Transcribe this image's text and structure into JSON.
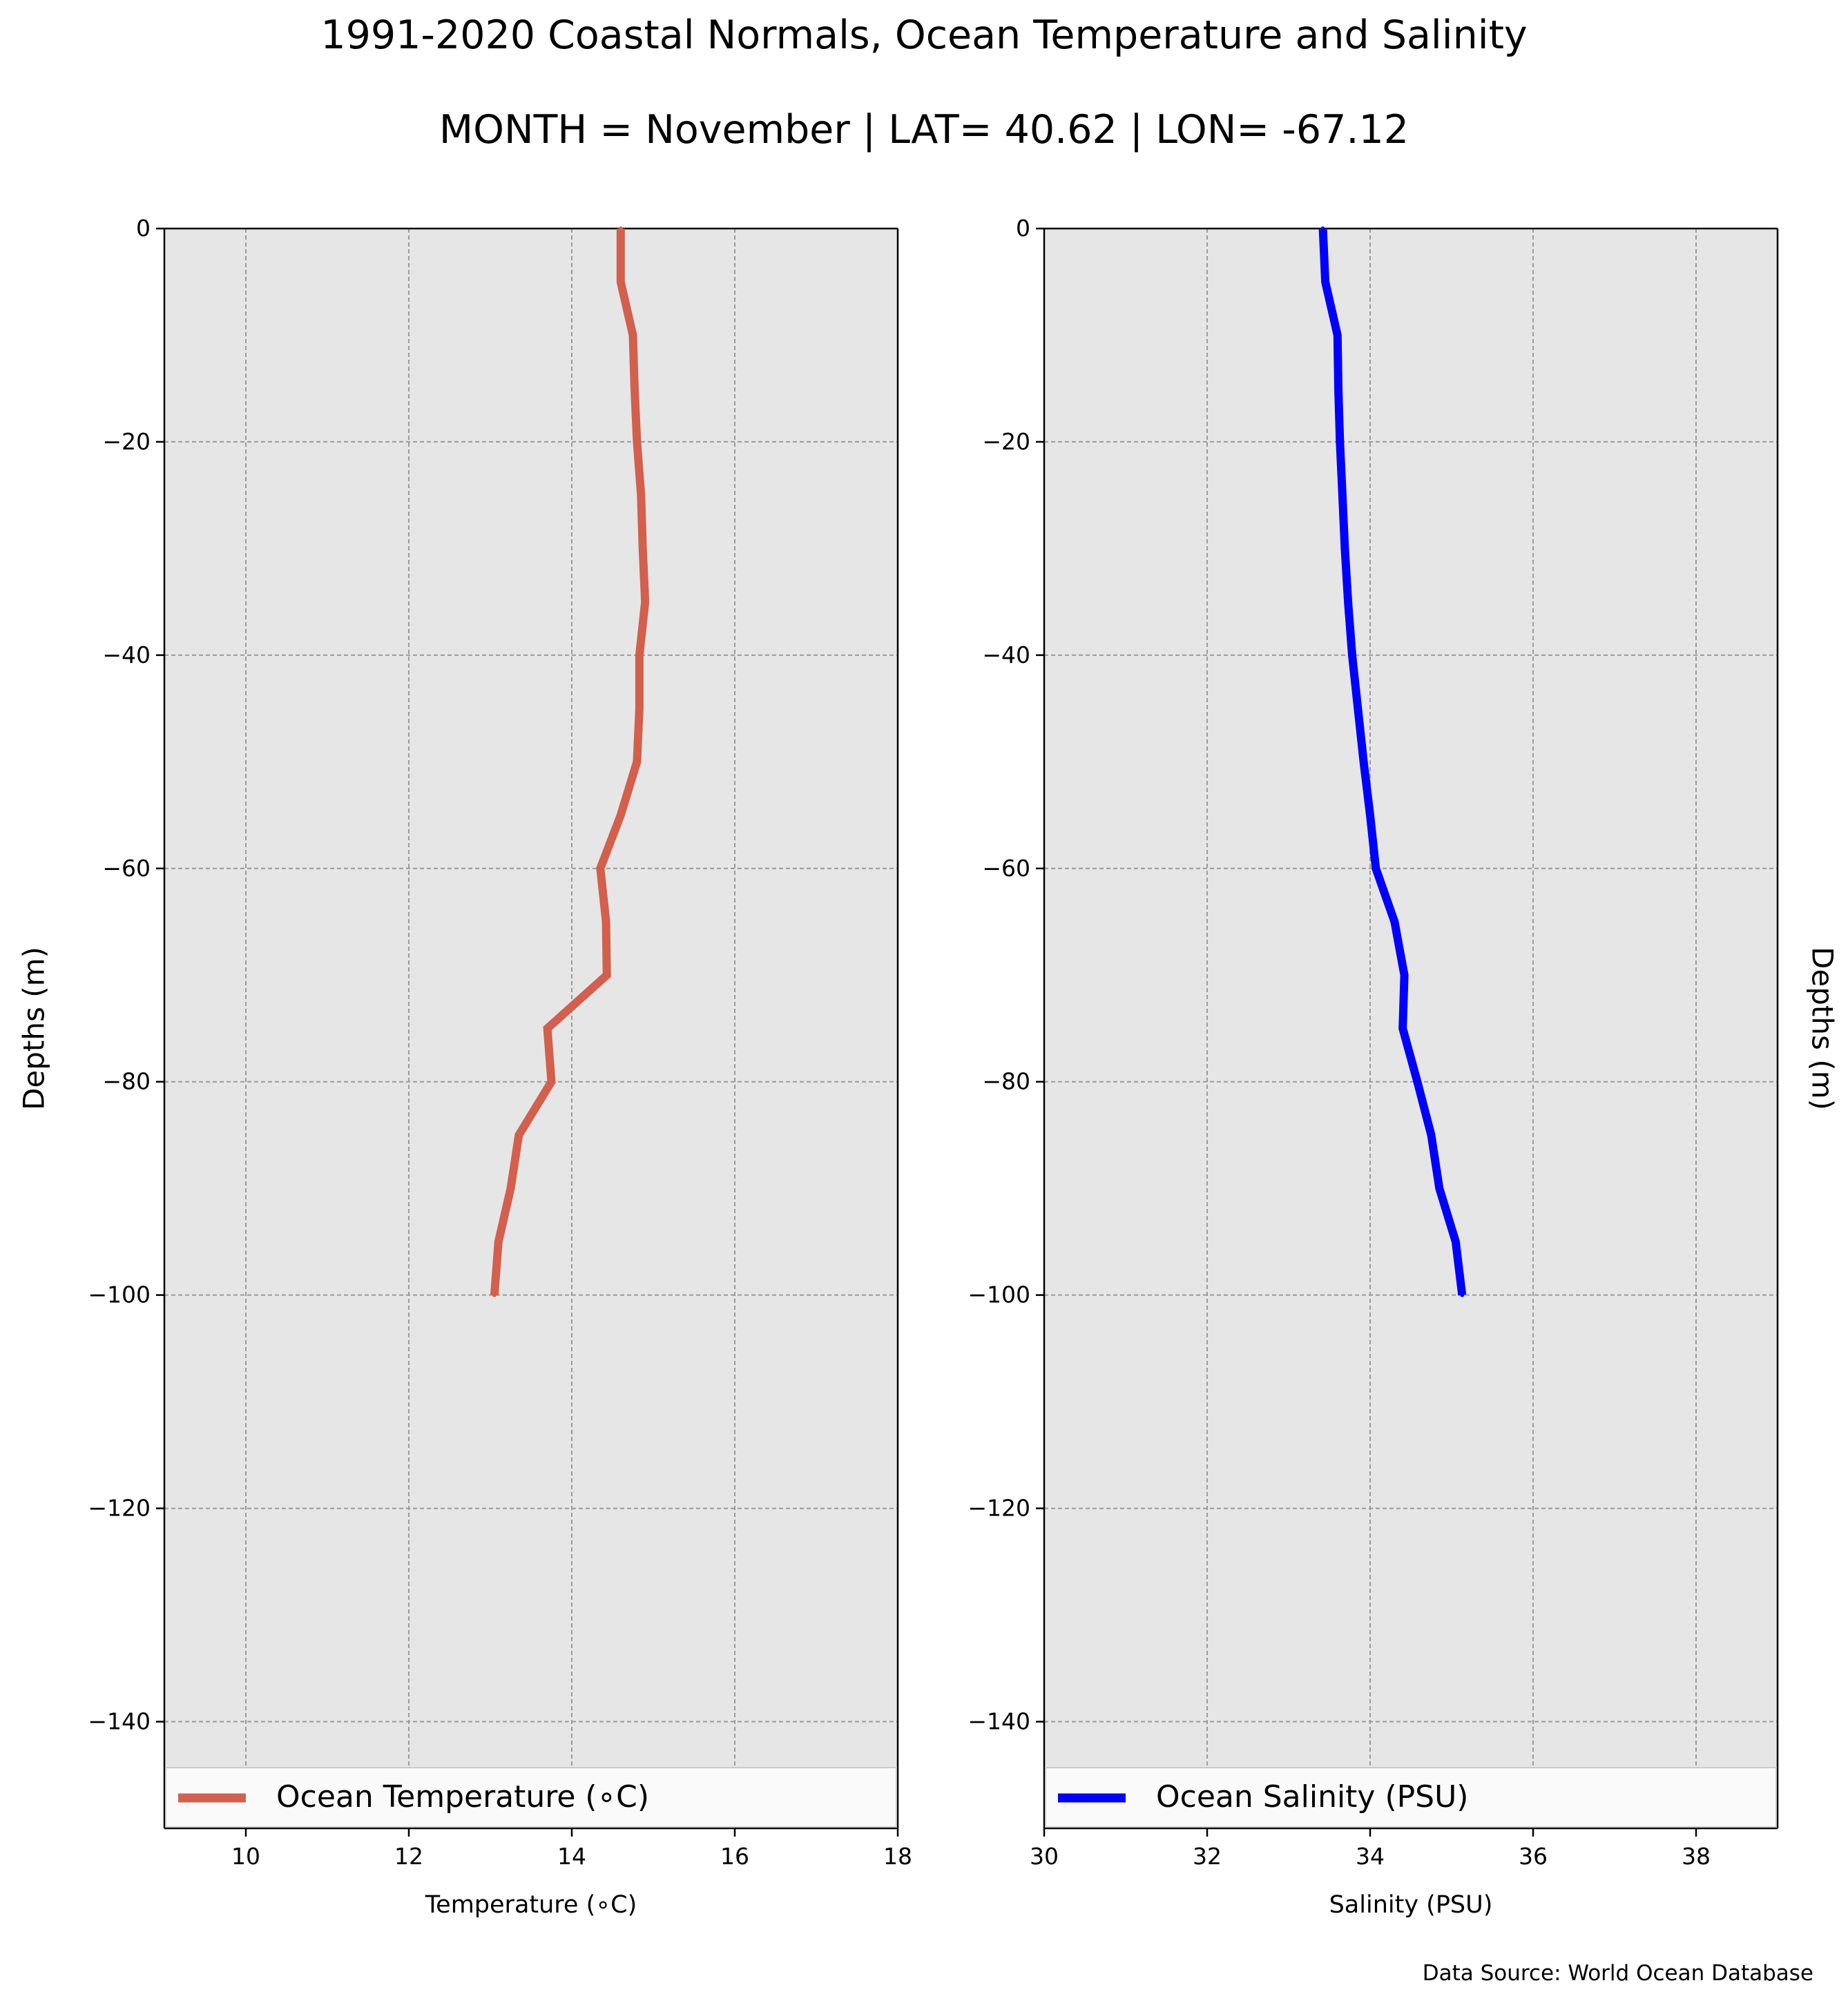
{
  "title": "1991-2020 Coastal Normals, Ocean Temperature and Salinity",
  "subtitle": "MONTH = November | LAT= 40.62 | LON= -67.12",
  "source": "Data Source: World Ocean Database",
  "chart_data": [
    {
      "type": "line",
      "xlabel": "Temperature (∘C)",
      "ylabel": "Depths (m)",
      "xlim": [
        9,
        18
      ],
      "ylim": [
        -150,
        0
      ],
      "xticks": [
        10,
        12,
        14,
        16,
        18
      ],
      "xtick_labels": [
        "10",
        "12",
        "14",
        "16",
        "18"
      ],
      "yticks": [
        0,
        -20,
        -40,
        -60,
        -80,
        -100,
        -120,
        -140
      ],
      "ytick_labels": [
        "0",
        "−20",
        "−40",
        "−60",
        "−80",
        "−100",
        "−120",
        "−140"
      ],
      "grid": true,
      "legend_position": "bottom",
      "series": [
        {
          "name": "Ocean Temperature (∘C)",
          "color": "#d35f4d",
          "y": [
            0,
            -5,
            -10,
            -15,
            -20,
            -25,
            -30,
            -35,
            -40,
            -45,
            -50,
            -55,
            -60,
            -65,
            -70,
            -75,
            -80,
            -85,
            -90,
            -95,
            -100
          ],
          "x": [
            14.6,
            14.6,
            14.75,
            14.77,
            14.8,
            14.85,
            14.87,
            14.9,
            14.83,
            14.83,
            14.8,
            14.6,
            14.35,
            14.42,
            14.43,
            13.7,
            13.75,
            13.35,
            13.25,
            13.1,
            13.05
          ]
        }
      ]
    },
    {
      "type": "line",
      "xlabel": "Salinity (PSU)",
      "ylabel": "Depths (m)",
      "xlim": [
        30,
        39
      ],
      "ylim": [
        -150,
        0
      ],
      "xticks": [
        30,
        32,
        34,
        36,
        38
      ],
      "xtick_labels": [
        "30",
        "32",
        "34",
        "36",
        "38"
      ],
      "yticks": [
        0,
        -20,
        -40,
        -60,
        -80,
        -100,
        -120,
        -140
      ],
      "ytick_labels": [
        "0",
        "−20",
        "−40",
        "−60",
        "−80",
        "−100",
        "−120",
        "−140"
      ],
      "grid": true,
      "legend_position": "bottom",
      "series": [
        {
          "name": "Ocean Salinity (PSU)",
          "color": "#0000ff",
          "y": [
            0,
            -5,
            -10,
            -15,
            -20,
            -25,
            -30,
            -35,
            -40,
            -45,
            -50,
            -55,
            -60,
            -65,
            -70,
            -75,
            -80,
            -85,
            -90,
            -95,
            -100
          ],
          "x": [
            33.42,
            33.45,
            33.6,
            33.61,
            33.63,
            33.66,
            33.69,
            33.73,
            33.78,
            33.85,
            33.92,
            34.0,
            34.07,
            34.3,
            34.42,
            34.4,
            34.58,
            34.75,
            34.85,
            35.05,
            35.13
          ]
        }
      ]
    }
  ]
}
